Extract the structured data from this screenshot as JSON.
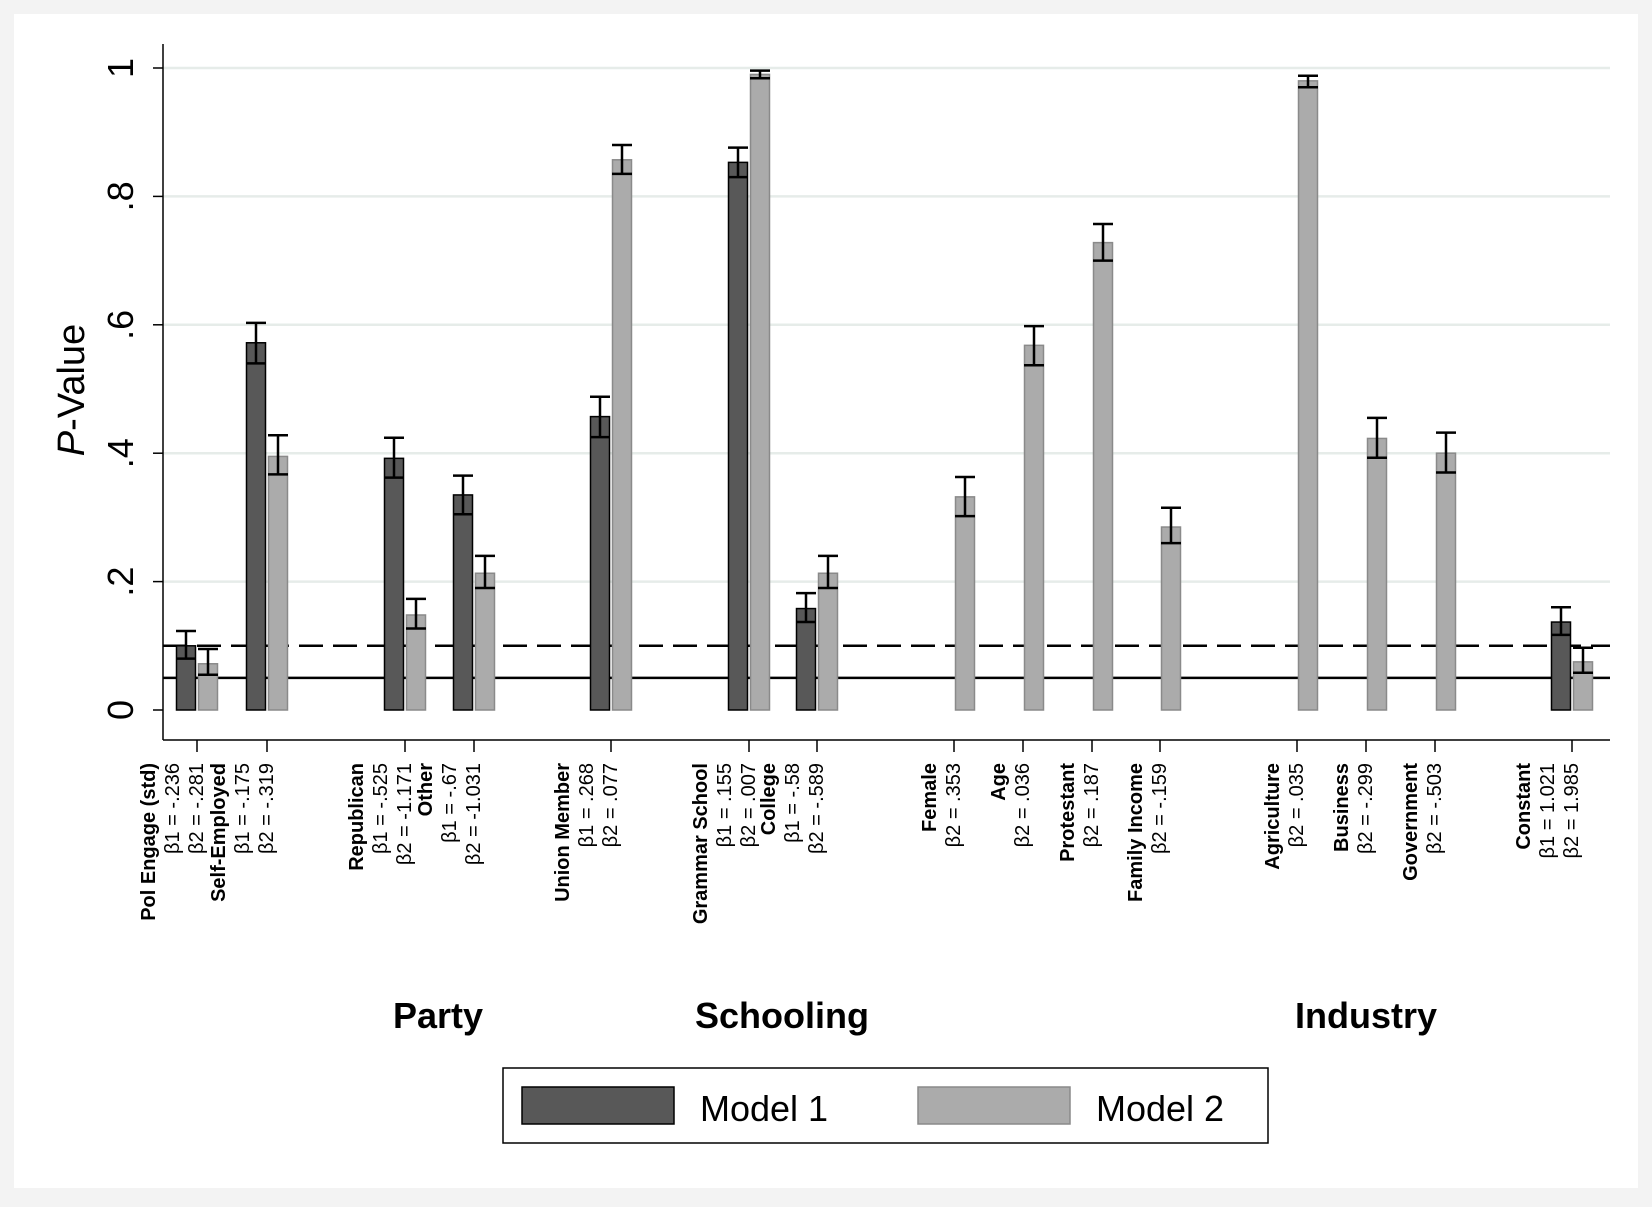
{
  "chart_data": {
    "type": "bar",
    "ylabel_italic": "P",
    "ylabel_rest": "-Value",
    "ylim": [
      0,
      1
    ],
    "yticks": [
      {
        "value": 0,
        "label": "0"
      },
      {
        "value": 0.2,
        "label": ".2"
      },
      {
        "value": 0.4,
        "label": ".4"
      },
      {
        "value": 0.6,
        "label": ".6"
      },
      {
        "value": 0.8,
        "label": ".8"
      },
      {
        "value": 1,
        "label": "1"
      }
    ],
    "grid": true,
    "reference_lines": [
      {
        "value": 0.1,
        "style": "dashed"
      },
      {
        "value": 0.05,
        "style": "solid"
      }
    ],
    "series": [
      {
        "name": "Model 1",
        "color": "#585858"
      },
      {
        "name": "Model 2",
        "color": "#ababab"
      }
    ],
    "categories": [
      {
        "name": "Pol Engage (std)",
        "b1": "β1 = -.236",
        "b2": "β2 = -.281",
        "m1": 0.1,
        "m1_err": [
          0.08,
          0.123
        ],
        "m2": 0.072,
        "m2_err": [
          0.055,
          0.095
        ]
      },
      {
        "name": "Self-Employed",
        "b1": "β1 = -.175",
        "b2": "β2 = -.319",
        "m1": 0.572,
        "m1_err": [
          0.54,
          0.603
        ],
        "m2": 0.395,
        "m2_err": [
          0.367,
          0.428
        ]
      },
      {
        "name": "Republican",
        "b1": "β1 = -.525",
        "b2": "β2 = -1.171",
        "m1": 0.392,
        "m1_err": [
          0.362,
          0.424
        ],
        "m2": 0.148,
        "m2_err": [
          0.127,
          0.173
        ]
      },
      {
        "name": "Other",
        "b1": "β1 = -.67",
        "b2": "β2 = -1.031",
        "m1": 0.335,
        "m1_err": [
          0.305,
          0.365
        ],
        "m2": 0.213,
        "m2_err": [
          0.19,
          0.24
        ]
      },
      {
        "name": "Union Member",
        "b1": "β1 = .268",
        "b2": "β2 = .077",
        "m1": 0.457,
        "m1_err": [
          0.425,
          0.488
        ],
        "m2": 0.857,
        "m2_err": [
          0.835,
          0.88
        ]
      },
      {
        "name": "Grammar School",
        "b1": "β1 = .155",
        "b2": "β2 = .007",
        "m1": 0.853,
        "m1_err": [
          0.83,
          0.876
        ],
        "m2": 0.99,
        "m2_err": [
          0.984,
          0.996
        ]
      },
      {
        "name": "College",
        "b1": "β1 = -.58",
        "b2": "β2 = -.589",
        "m1": 0.158,
        "m1_err": [
          0.137,
          0.182
        ],
        "m2": 0.213,
        "m2_err": [
          0.19,
          0.24
        ]
      },
      {
        "name": "Female",
        "b1": "",
        "b2": "β2 = .353",
        "m1": null,
        "m1_err": null,
        "m2": 0.332,
        "m2_err": [
          0.302,
          0.363
        ]
      },
      {
        "name": "Age",
        "b1": "",
        "b2": "β2 = .036",
        "m1": null,
        "m1_err": null,
        "m2": 0.568,
        "m2_err": [
          0.537,
          0.598
        ]
      },
      {
        "name": "Protestant",
        "b1": "",
        "b2": "β2 = .187",
        "m1": null,
        "m1_err": null,
        "m2": 0.728,
        "m2_err": [
          0.7,
          0.757
        ]
      },
      {
        "name": "Family Income",
        "b1": "",
        "b2": "β2 = -.159",
        "m1": null,
        "m1_err": null,
        "m2": 0.285,
        "m2_err": [
          0.26,
          0.315
        ]
      },
      {
        "name": "Agriculture",
        "b1": "",
        "b2": "β2 = .035",
        "m1": null,
        "m1_err": null,
        "m2": 0.98,
        "m2_err": [
          0.97,
          0.988
        ]
      },
      {
        "name": "Business",
        "b1": "",
        "b2": "β2 = -.299",
        "m1": null,
        "m1_err": null,
        "m2": 0.423,
        "m2_err": [
          0.393,
          0.455
        ]
      },
      {
        "name": "Government",
        "b1": "",
        "b2": "β2 = -.503",
        "m1": null,
        "m1_err": null,
        "m2": 0.4,
        "m2_err": [
          0.37,
          0.432
        ]
      },
      {
        "name": "Constant",
        "b1": "β1 = 1.021",
        "b2": "β2 = 1.985",
        "m1": 0.137,
        "m1_err": [
          0.117,
          0.16
        ],
        "m2": 0.075,
        "m2_err": [
          0.058,
          0.097
        ]
      }
    ],
    "groups": [
      {
        "label": "Party"
      },
      {
        "label": "Schooling"
      },
      {
        "label": "Industry"
      }
    ]
  }
}
